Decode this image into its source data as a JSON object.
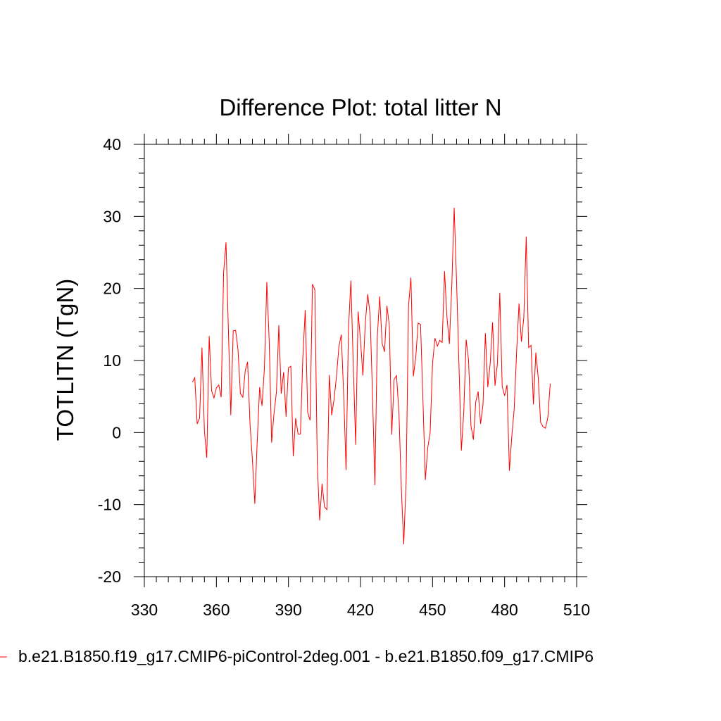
{
  "chart_data": {
    "type": "line",
    "title": "Difference Plot: total litter N",
    "xlabel": "",
    "ylabel": "TOTLITN  (TgN)",
    "xlim": [
      330,
      510
    ],
    "ylim": [
      -20,
      40
    ],
    "xticks": [
      330,
      360,
      390,
      420,
      450,
      480,
      510
    ],
    "yticks": [
      -20,
      -10,
      0,
      10,
      20,
      30,
      40
    ],
    "xtick_labels": [
      "330",
      "360",
      "390",
      "420",
      "450",
      "480",
      "510"
    ],
    "ytick_labels": [
      "-20",
      "-10",
      "0",
      "10",
      "20",
      "30",
      "40"
    ],
    "grid": false,
    "legend_position": "bottom",
    "series": [
      {
        "name": "b.e21.B1850.f19_g17.CMIP6-piControl-2deg.001 - b.e21.B1850.f09_g17.CMIP6",
        "color": "#ff0000",
        "x": [
          350,
          351,
          352,
          353,
          354,
          355,
          356,
          357,
          358,
          359,
          360,
          361,
          362,
          363,
          364,
          365,
          366,
          367,
          368,
          369,
          370,
          371,
          372,
          373,
          374,
          375,
          376,
          377,
          378,
          379,
          380,
          381,
          382,
          383,
          384,
          385,
          386,
          387,
          388,
          389,
          390,
          391,
          392,
          393,
          394,
          395,
          396,
          397,
          398,
          399,
          400,
          401,
          402,
          403,
          404,
          405,
          406,
          407,
          408,
          409,
          410,
          411,
          412,
          413,
          414,
          415,
          416,
          417,
          418,
          419,
          420,
          421,
          422,
          423,
          424,
          425,
          426,
          427,
          428,
          429,
          430,
          431,
          432,
          433,
          434,
          435,
          436,
          437,
          438,
          439,
          440,
          441,
          442,
          443,
          444,
          445,
          446,
          447,
          448,
          449,
          450,
          451,
          452,
          453,
          454,
          455,
          456,
          457,
          458,
          459,
          460,
          461,
          462,
          463,
          464,
          465,
          466,
          467,
          468,
          469,
          470,
          471,
          472,
          473,
          474,
          475,
          476,
          477,
          478,
          479,
          480,
          481,
          482,
          483,
          484,
          485,
          486,
          487,
          488,
          489,
          490,
          491,
          492,
          493,
          494,
          495,
          496,
          497,
          498,
          499
        ],
        "y": [
          7.0,
          7.6,
          1.2,
          2.0,
          11.8,
          0.3,
          -3.5,
          13.4,
          5.8,
          4.8,
          6.2,
          6.6,
          4.9,
          22.2,
          26.4,
          14.2,
          2.4,
          14.1,
          14.2,
          11.5,
          5.4,
          4.9,
          8.6,
          9.8,
          1.2,
          -3.8,
          -9.9,
          -1.2,
          6.3,
          3.7,
          9.0,
          20.9,
          12.6,
          -1.4,
          2.7,
          5.6,
          14.9,
          5.4,
          8.4,
          2.2,
          9.0,
          9.2,
          -3.3,
          2.0,
          -0.2,
          -0.2,
          10.5,
          17.0,
          2.8,
          1.7,
          20.6,
          19.8,
          -4.2,
          -12.2,
          -7.1,
          -10.3,
          -10.7,
          8.0,
          2.4,
          4.6,
          7.8,
          11.9,
          13.6,
          5.2,
          -5.2,
          14.4,
          21.1,
          9.3,
          -1.7,
          16.8,
          12.8,
          7.9,
          15.2,
          19.2,
          16.4,
          5.2,
          -7.3,
          13.3,
          18.9,
          12.4,
          11.2,
          17.6,
          14.9,
          -0.3,
          7.4,
          7.9,
          2.8,
          -7.7,
          -15.5,
          -6.8,
          17.6,
          21.5,
          7.8,
          10.4,
          15.2,
          15.0,
          4.5,
          -6.6,
          -2.1,
          0.0,
          9.6,
          13.1,
          12.0,
          12.8,
          12.5,
          22.4,
          16.0,
          12.3,
          20.3,
          31.2,
          21.0,
          9.3,
          -2.5,
          2.9,
          12.9,
          10.0,
          0.9,
          -1.0,
          4.3,
          5.7,
          1.2,
          3.9,
          13.8,
          6.3,
          9.6,
          15.3,
          6.5,
          9.6,
          19.4,
          6.4,
          5.1,
          6.6,
          -5.3,
          -0.5,
          3.3,
          11.2,
          17.9,
          12.6,
          16.0,
          27.2,
          11.8,
          12.1,
          3.9,
          11.1,
          7.6,
          1.4,
          0.8,
          0.6,
          2.1,
          6.8
        ]
      }
    ]
  }
}
